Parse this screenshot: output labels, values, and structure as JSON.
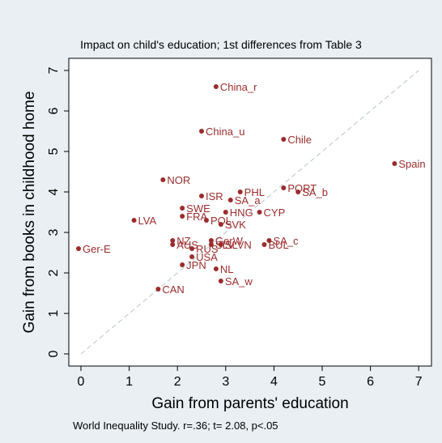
{
  "chart_data": {
    "type": "scatter",
    "title": "Impact on child's education; 1st differences from Table 3",
    "xlabel": "Gain from parents' education",
    "ylabel": "Gain from books in childhood home",
    "note": "World Inequality Study. r=.36;  t= 2.08, p<.05",
    "xlim": [
      -0.3,
      7.2
    ],
    "ylim": [
      -0.2,
      7.2
    ],
    "xticks": [
      "0",
      "1",
      "2",
      "3",
      "4",
      "5",
      "6",
      "7"
    ],
    "yticks": [
      "0",
      "1",
      "2",
      "3",
      "4",
      "5",
      "6",
      "7"
    ],
    "reference_line": "y = x (dashed)",
    "grid": false,
    "marker_color": "#9b2c2c",
    "points": [
      {
        "label": "China_r",
        "x": 2.8,
        "y": 6.6
      },
      {
        "label": "China_u",
        "x": 2.5,
        "y": 5.5
      },
      {
        "label": "Chile",
        "x": 4.2,
        "y": 5.3
      },
      {
        "label": "Spain",
        "x": 6.5,
        "y": 4.7
      },
      {
        "label": "NOR",
        "x": 1.7,
        "y": 4.3
      },
      {
        "label": "PORT",
        "x": 4.2,
        "y": 4.1
      },
      {
        "label": "SA_b",
        "x": 4.5,
        "y": 4.0
      },
      {
        "label": "PHL",
        "x": 3.3,
        "y": 4.0
      },
      {
        "label": "ISR",
        "x": 2.5,
        "y": 3.9
      },
      {
        "label": "SA_a",
        "x": 3.1,
        "y": 3.8
      },
      {
        "label": "SWE",
        "x": 2.1,
        "y": 3.6
      },
      {
        "label": "HNG",
        "x": 3.0,
        "y": 3.5
      },
      {
        "label": "CYP",
        "x": 3.7,
        "y": 3.5
      },
      {
        "label": "FRA",
        "x": 2.1,
        "y": 3.4
      },
      {
        "label": "POL",
        "x": 2.6,
        "y": 3.3
      },
      {
        "label": "LVA",
        "x": 1.1,
        "y": 3.3
      },
      {
        "label": "SVK",
        "x": 2.9,
        "y": 3.2
      },
      {
        "label": "NZ",
        "x": 1.9,
        "y": 2.8
      },
      {
        "label": "GerW",
        "x": 2.7,
        "y": 2.8
      },
      {
        "label": "SA_c",
        "x": 3.9,
        "y": 2.8
      },
      {
        "label": "AUS",
        "x": 1.9,
        "y": 2.7
      },
      {
        "label": "SLV",
        "x": 2.7,
        "y": 2.7
      },
      {
        "label": "SLVN",
        "x": 2.9,
        "y": 2.7
      },
      {
        "label": "BUL",
        "x": 3.8,
        "y": 2.7
      },
      {
        "label": "RUS",
        "x": 2.3,
        "y": 2.6
      },
      {
        "label": "Ger-E",
        "x": -0.05,
        "y": 2.6
      },
      {
        "label": "USA",
        "x": 2.3,
        "y": 2.4
      },
      {
        "label": "JPN",
        "x": 2.1,
        "y": 2.2
      },
      {
        "label": "NL",
        "x": 2.8,
        "y": 2.1
      },
      {
        "label": "SA_w",
        "x": 2.9,
        "y": 1.8
      },
      {
        "label": "CAN",
        "x": 1.6,
        "y": 1.6
      }
    ]
  }
}
